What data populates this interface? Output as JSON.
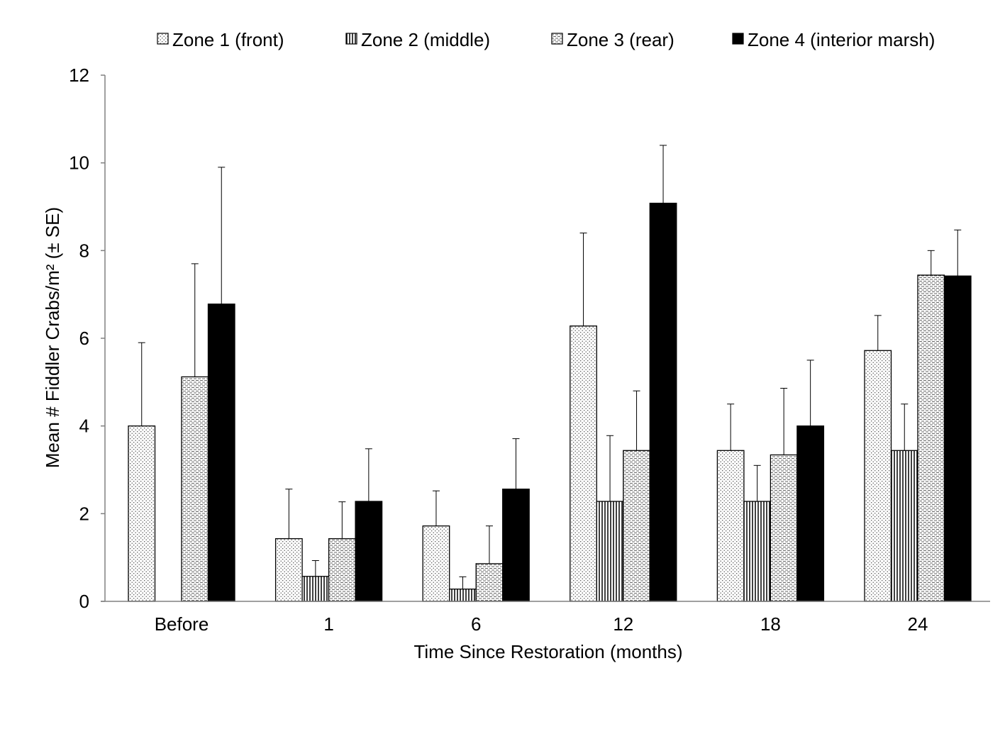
{
  "chart_data": {
    "type": "bar",
    "title": "",
    "xlabel": "Time Since Restoration (months)",
    "ylabel": "Mean # Fiddler Crabs/m² (± SE)",
    "ylim": [
      0,
      12
    ],
    "yticks": [
      0,
      2,
      4,
      6,
      8,
      10,
      12
    ],
    "grid": false,
    "legend_position": "top",
    "categories": [
      "Before",
      "1",
      "6",
      "12",
      "18",
      "24"
    ],
    "series": [
      {
        "name": "Zone 1 (front)",
        "pattern": "dots",
        "values": [
          4.0,
          1.43,
          1.72,
          6.28,
          3.44,
          5.72
        ],
        "errors": [
          1.9,
          1.13,
          0.8,
          2.12,
          1.06,
          0.8
        ]
      },
      {
        "name": "Zone 2 (middle)",
        "pattern": "vertical-lines",
        "values": [
          0,
          0.57,
          0.28,
          2.28,
          2.28,
          3.44
        ],
        "errors": [
          0,
          0.36,
          0.28,
          1.5,
          0.82,
          1.06
        ]
      },
      {
        "name": "Zone 3 (rear)",
        "pattern": "horizontal-dashes",
        "values": [
          5.12,
          1.43,
          0.86,
          3.44,
          3.34,
          7.44
        ],
        "errors": [
          2.58,
          0.84,
          0.86,
          1.36,
          1.52,
          0.56
        ]
      },
      {
        "name": "Zone 4 (interior marsh)",
        "pattern": "solid",
        "values": [
          6.78,
          2.28,
          2.56,
          9.08,
          4.0,
          7.42
        ],
        "errors": [
          3.12,
          1.2,
          1.15,
          1.32,
          1.5,
          1.05
        ]
      }
    ]
  },
  "colors": {
    "axis": "#808080",
    "bar_stroke": "#000000",
    "solid_fill": "#000000",
    "background": "#ffffff"
  }
}
